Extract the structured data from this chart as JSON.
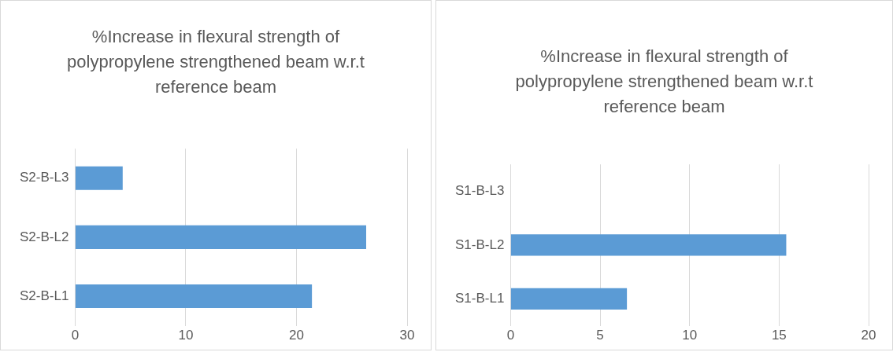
{
  "chart_data": [
    {
      "type": "bar",
      "orientation": "horizontal",
      "title": "%Increase in flexural strength of polypropylene strengthened beam w.r.t reference beam",
      "categories": [
        "S2-B-L3",
        "S2-B-L2",
        "S2-B-L1"
      ],
      "values": [
        4.3,
        26.3,
        21.4
      ],
      "color": "#5b9bd5",
      "xlim": [
        0,
        30
      ],
      "xticks": [
        0,
        10,
        20,
        30
      ],
      "grid": "x"
    },
    {
      "type": "bar",
      "orientation": "horizontal",
      "title": "%Increase in flexural strength of polypropylene strengthened beam w.r.t reference beam",
      "categories": [
        "S1-B-L3",
        "S1-B-L2",
        "S1-B-L1"
      ],
      "values": [
        0,
        15.4,
        6.5
      ],
      "color": "#5b9bd5",
      "xlim": [
        0,
        20
      ],
      "xticks": [
        0,
        5,
        10,
        15,
        20
      ],
      "grid": "x"
    }
  ]
}
